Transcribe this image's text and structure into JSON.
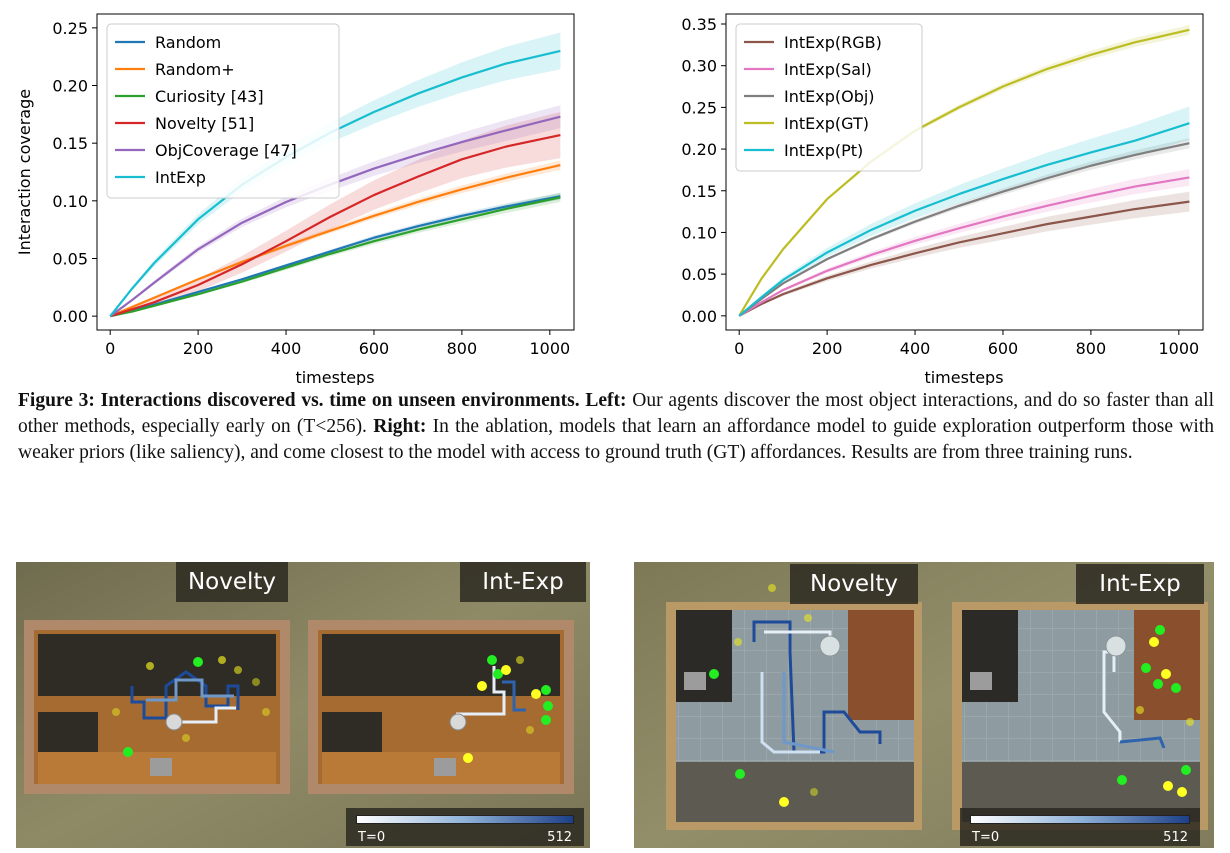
{
  "chart_data": [
    {
      "type": "line",
      "xlabel": "timesteps",
      "ylabel": "Interaction coverage",
      "xlim": [
        -30,
        1055
      ],
      "ylim": [
        -0.012,
        0.262
      ],
      "xticks": [
        "0",
        "200",
        "400",
        "600",
        "800",
        "1000"
      ],
      "xtick_values": [
        0,
        200,
        400,
        600,
        800,
        1000
      ],
      "yticks": [
        "0.00",
        "0.05",
        "0.10",
        "0.15",
        "0.20",
        "0.25"
      ],
      "ytick_values": [
        0,
        0.05,
        0.1,
        0.15,
        0.2,
        0.25
      ],
      "legend_position": "top-left",
      "grid": false,
      "x": [
        0,
        50,
        100,
        200,
        300,
        400,
        500,
        600,
        700,
        800,
        900,
        1024
      ],
      "series": [
        {
          "name": "Random",
          "color": "#1f77b4",
          "values": [
            0,
            0.005,
            0.01,
            0.021,
            0.032,
            0.044,
            0.056,
            0.068,
            0.078,
            0.087,
            0.095,
            0.104
          ],
          "band": 0.003
        },
        {
          "name": "Random+",
          "color": "#ff7f0e",
          "values": [
            0,
            0.008,
            0.016,
            0.032,
            0.047,
            0.061,
            0.074,
            0.087,
            0.099,
            0.11,
            0.12,
            0.131
          ],
          "band": 0.004
        },
        {
          "name": "Curiosity [43]",
          "color": "#2ca02c",
          "values": [
            0,
            0.004,
            0.009,
            0.019,
            0.03,
            0.042,
            0.054,
            0.065,
            0.075,
            0.084,
            0.093,
            0.103
          ],
          "band": 0.004
        },
        {
          "name": "Novelty [51]",
          "color": "#d62728",
          "values": [
            0,
            0.006,
            0.012,
            0.027,
            0.045,
            0.065,
            0.086,
            0.105,
            0.121,
            0.136,
            0.147,
            0.157
          ],
          "band": 0.02
        },
        {
          "name": "ObjCoverage [47]",
          "color": "#9467bd",
          "values": [
            0,
            0.014,
            0.029,
            0.058,
            0.081,
            0.099,
            0.114,
            0.128,
            0.14,
            0.151,
            0.161,
            0.173
          ],
          "band": 0.01
        },
        {
          "name": "IntExp",
          "color": "#17becf",
          "values": [
            0,
            0.024,
            0.046,
            0.084,
            0.114,
            0.138,
            0.159,
            0.177,
            0.193,
            0.207,
            0.219,
            0.23
          ],
          "band": 0.016
        }
      ]
    },
    {
      "type": "line",
      "xlabel": "timesteps",
      "ylabel": "",
      "xlim": [
        -30,
        1055
      ],
      "ylim": [
        -0.017,
        0.362
      ],
      "xticks": [
        "0",
        "200",
        "400",
        "600",
        "800",
        "1000"
      ],
      "xtick_values": [
        0,
        200,
        400,
        600,
        800,
        1000
      ],
      "yticks": [
        "0.00",
        "0.05",
        "0.10",
        "0.15",
        "0.20",
        "0.25",
        "0.30",
        "0.35"
      ],
      "ytick_values": [
        0,
        0.05,
        0.1,
        0.15,
        0.2,
        0.25,
        0.3,
        0.35
      ],
      "legend_position": "top-left",
      "grid": false,
      "x": [
        0,
        50,
        100,
        200,
        300,
        400,
        500,
        600,
        700,
        800,
        900,
        1024
      ],
      "series": [
        {
          "name": "IntExp(RGB)",
          "color": "#8c564b",
          "values": [
            0,
            0.014,
            0.026,
            0.045,
            0.061,
            0.075,
            0.088,
            0.099,
            0.11,
            0.119,
            0.128,
            0.137
          ],
          "band": 0.012
        },
        {
          "name": "IntExp(Sal)",
          "color": "#e377c2",
          "values": [
            0,
            0.016,
            0.031,
            0.054,
            0.073,
            0.09,
            0.105,
            0.119,
            0.132,
            0.144,
            0.155,
            0.166
          ],
          "band": 0.01
        },
        {
          "name": "IntExp(Obj)",
          "color": "#7f7f7f",
          "values": [
            0,
            0.02,
            0.039,
            0.068,
            0.092,
            0.113,
            0.132,
            0.149,
            0.165,
            0.18,
            0.193,
            0.207
          ],
          "band": 0.006
        },
        {
          "name": "IntExp(GT)",
          "color": "#bcbd22",
          "values": [
            0,
            0.044,
            0.08,
            0.14,
            0.185,
            0.222,
            0.25,
            0.275,
            0.296,
            0.313,
            0.328,
            0.343
          ],
          "band": 0.006
        },
        {
          "name": "IntExp(Pt)",
          "color": "#17becf",
          "values": [
            0,
            0.022,
            0.043,
            0.076,
            0.103,
            0.126,
            0.146,
            0.164,
            0.181,
            0.196,
            0.21,
            0.231
          ],
          "band": 0.02
        }
      ]
    }
  ],
  "caption": {
    "figure_label": "Figure 3:",
    "bold_title": "Interactions discovered vs. time on unseen environments.",
    "left_label": "Left:",
    "left_text": "Our agents discover the most object interactions, and do so faster than all other methods, especially early on (T<256).",
    "right_label": "Right:",
    "right_text": "In the ablation, models that learn an affordance model to guide exploration outperform those with weaker priors (like saliency), and come closest to the model with access to ground truth (GT) affordances. Results are from three training runs."
  },
  "panels": {
    "novelty_label": "Novelty",
    "intexp_label": "Int-Exp",
    "colorbar_min": "T=0",
    "colorbar_max": "512",
    "colors": {
      "sand": "#8d8662",
      "wood_floor": "#a06a33",
      "tile_floor": "#8e9ba0",
      "dark_counter": "#2c2a26",
      "path_dark": "#1d4b9a",
      "path_light": "#cfe0f2",
      "point_green": "#22ee22",
      "point_yellow": "#e8e820"
    }
  }
}
